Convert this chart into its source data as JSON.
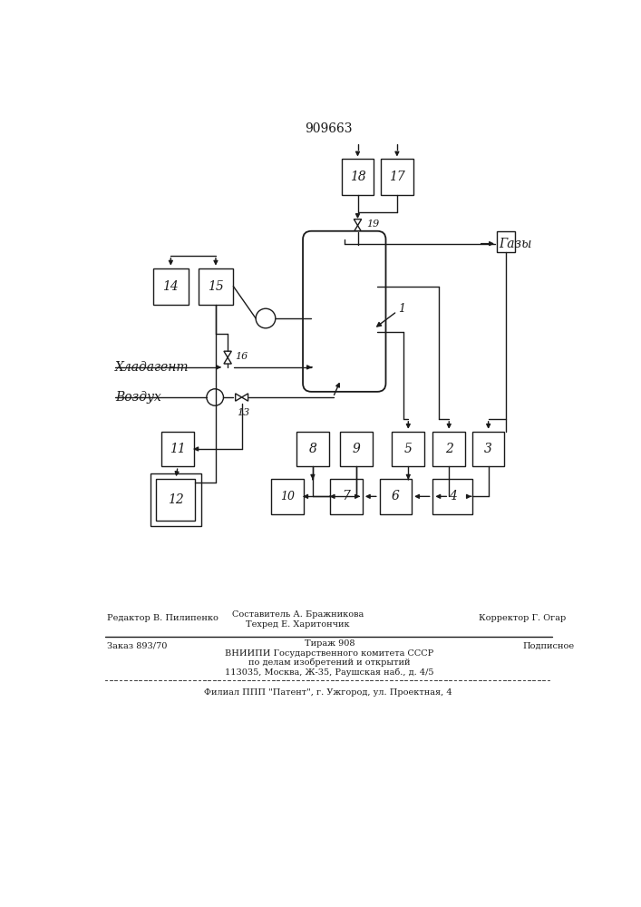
{
  "title": "909663",
  "bg": "#ffffff",
  "lc": "#1a1a1a",
  "label_khladagent": "Хладагент",
  "label_vozdukh": "Воздух",
  "label_gazy": "Газы",
  "footer1_left": "Редактор В. Пилипенко",
  "footer1_center1": "Составитель А. Бражникова",
  "footer1_center2": "Техред Е. Харитончик",
  "footer1_right": "Корректор Г. Огар",
  "footer2_left": "Заказ 893/70",
  "footer2_center1": "Тираж 908",
  "footer2_center2": "ВНИИПИ Государственного комитета СССР",
  "footer2_center3": "по делам изобретений и открытий",
  "footer2_center4": "113035, Москва, Ж-35, Раушская наб., д. 4/5",
  "footer2_right": "Подписное",
  "footer3": "Филиал ППП \"Патент\", г. Ужгород, ул. Проектная, 4"
}
